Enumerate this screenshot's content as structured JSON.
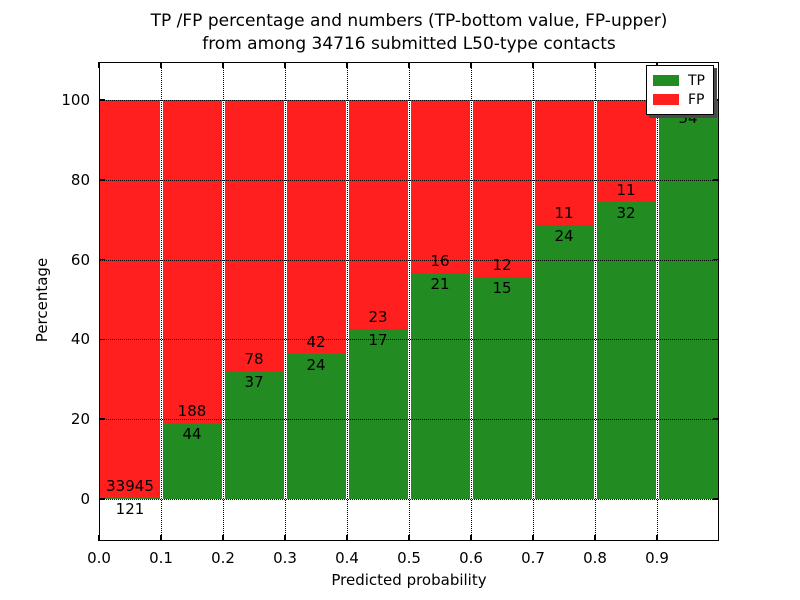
{
  "title": {
    "line1": "TP /FP percentage and numbers (TP-bottom value, FP-upper)",
    "line2": "from among 34716 submitted L50-type contacts"
  },
  "axes": {
    "x": {
      "label": "Predicted probability",
      "tick_labels": [
        "0.0",
        "0.1",
        "0.2",
        "0.3",
        "0.4",
        "0.5",
        "0.6",
        "0.7",
        "0.8",
        "0.9"
      ],
      "tick_values": [
        0.0,
        0.1,
        0.2,
        0.3,
        0.4,
        0.5,
        0.6,
        0.7,
        0.8,
        0.9
      ],
      "range": [
        0.0,
        1.0
      ]
    },
    "y": {
      "label": "Percentage",
      "tick_labels": [
        "0",
        "20",
        "40",
        "60",
        "80",
        "100"
      ],
      "tick_values": [
        0,
        20,
        40,
        60,
        80,
        100
      ],
      "display_range": [
        -10.5,
        109.5
      ]
    }
  },
  "legend": {
    "position": "upper-right",
    "items": [
      {
        "label": "TP",
        "color": "#228b22"
      },
      {
        "label": "FP",
        "color": "#ff1f1f"
      }
    ]
  },
  "colors": {
    "tp": "#228b22",
    "fp": "#ff1f1f",
    "grid": "#000000",
    "frame": "#000000",
    "background": "#ffffff",
    "legend_shadow": "#4a4a4a"
  },
  "chart_data": {
    "type": "bar",
    "stacked": true,
    "normalized_to_percent": true,
    "title": "TP /FP percentage and numbers (TP-bottom value, FP-upper) from among 34716 submitted L50-type contacts",
    "xlabel": "Predicted probability",
    "ylabel": "Percentage",
    "total_contacts": 34716,
    "grid": true,
    "series_names": [
      "TP",
      "FP"
    ],
    "bins": [
      {
        "x_start": 0.0,
        "x_end": 0.1,
        "tp": 121,
        "fp": 33945,
        "tp_pct": 0.36,
        "fp_pct": 99.64,
        "tp_label": "121",
        "fp_label": "33945",
        "fp_label_visible": true
      },
      {
        "x_start": 0.1,
        "x_end": 0.2,
        "tp": 44,
        "fp": 188,
        "tp_pct": 18.97,
        "fp_pct": 81.03,
        "tp_label": "44",
        "fp_label": "188",
        "fp_label_visible": true
      },
      {
        "x_start": 0.2,
        "x_end": 0.3,
        "tp": 37,
        "fp": 78,
        "tp_pct": 32.17,
        "fp_pct": 67.83,
        "tp_label": "37",
        "fp_label": "78",
        "fp_label_visible": true
      },
      {
        "x_start": 0.3,
        "x_end": 0.4,
        "tp": 24,
        "fp": 42,
        "tp_pct": 36.36,
        "fp_pct": 63.64,
        "tp_label": "24",
        "fp_label": "42",
        "fp_label_visible": true
      },
      {
        "x_start": 0.4,
        "x_end": 0.5,
        "tp": 17,
        "fp": 23,
        "tp_pct": 42.5,
        "fp_pct": 57.5,
        "tp_label": "17",
        "fp_label": "23",
        "fp_label_visible": true
      },
      {
        "x_start": 0.5,
        "x_end": 0.6,
        "tp": 21,
        "fp": 16,
        "tp_pct": 56.76,
        "fp_pct": 43.24,
        "tp_label": "21",
        "fp_label": "16",
        "fp_label_visible": true
      },
      {
        "x_start": 0.6,
        "x_end": 0.7,
        "tp": 15,
        "fp": 12,
        "tp_pct": 55.56,
        "fp_pct": 44.44,
        "tp_label": "15",
        "fp_label": "12",
        "fp_label_visible": true
      },
      {
        "x_start": 0.7,
        "x_end": 0.8,
        "tp": 24,
        "fp": 11,
        "tp_pct": 68.57,
        "fp_pct": 31.43,
        "tp_label": "24",
        "fp_label": "11",
        "fp_label_visible": true
      },
      {
        "x_start": 0.8,
        "x_end": 0.9,
        "tp": 32,
        "fp": 11,
        "tp_pct": 74.42,
        "fp_pct": 25.58,
        "tp_label": "32",
        "fp_label": "11",
        "fp_label_visible": true
      },
      {
        "x_start": 0.9,
        "x_end": 1.0,
        "tp": 54,
        "fp": 1,
        "tp_pct": 98.18,
        "fp_pct": 1.82,
        "tp_label": "54",
        "fp_label": "",
        "fp_label_visible": false,
        "note": "FP count label hidden behind legend"
      }
    ]
  }
}
